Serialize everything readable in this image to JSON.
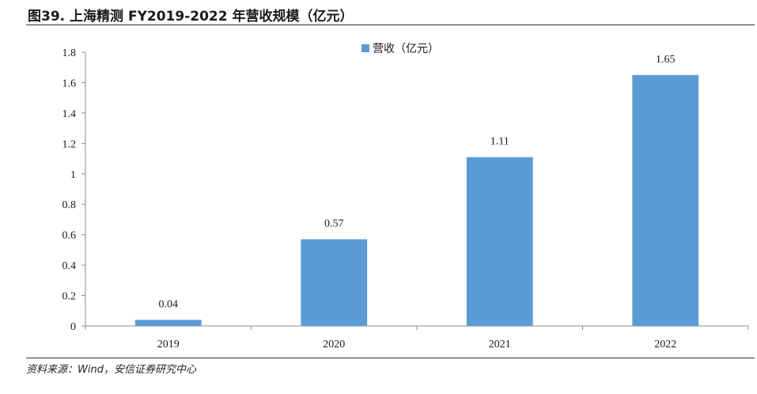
{
  "header": {
    "title": "图39. 上海精测 FY2019-2022 年营收规模（亿元）"
  },
  "footer": {
    "source": "资料来源：Wind，安信证券研究中心"
  },
  "colors": {
    "bar": "#5B9BD5",
    "axis": "#8c8c8c"
  },
  "chart_data": {
    "type": "bar",
    "title": "",
    "xlabel": "",
    "ylabel": "",
    "categories": [
      "2019",
      "2020",
      "2021",
      "2022"
    ],
    "series": [
      {
        "name": "营收（亿元）",
        "values": [
          0.04,
          0.57,
          1.11,
          1.65
        ],
        "data_labels": [
          "0.04",
          "0.57",
          "1.11",
          "1.65"
        ]
      }
    ],
    "ylim": [
      0,
      1.8
    ],
    "yticks": [
      0,
      0.2,
      0.4,
      0.6,
      0.8,
      1,
      1.2,
      1.4,
      1.6,
      1.8
    ],
    "ytick_labels": [
      "0",
      "0.2",
      "0.4",
      "0.6",
      "0.8",
      "1",
      "1.2",
      "1.4",
      "1.6",
      "1.8"
    ],
    "legend": "top-center",
    "grid": false
  }
}
